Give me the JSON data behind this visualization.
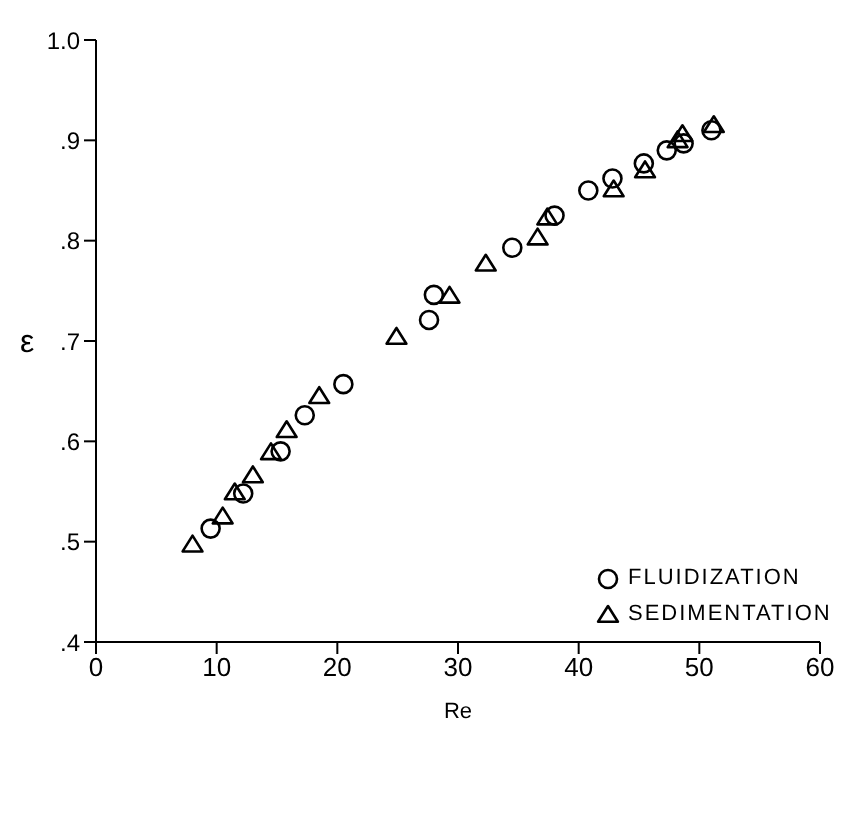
{
  "chart_data": {
    "type": "scatter",
    "xlabel": "Re",
    "ylabel": "ε",
    "xlim": [
      0,
      60
    ],
    "xticks": [
      0,
      10,
      20,
      30,
      40,
      50,
      60
    ],
    "ylim": [
      0.4,
      1.0
    ],
    "yticks": [
      {
        "value": 0.4,
        "label": ".4"
      },
      {
        "value": 0.5,
        "label": ".5"
      },
      {
        "value": 0.6,
        "label": ".6"
      },
      {
        "value": 0.7,
        "label": ".7"
      },
      {
        "value": 0.8,
        "label": ".8"
      },
      {
        "value": 0.9,
        "label": ".9"
      },
      {
        "value": 1.0,
        "label": "1.0"
      }
    ],
    "grid": false,
    "legend": "bottom right",
    "series": [
      {
        "name": "FLUIDIZATION",
        "color": "#000000",
        "marker": "circle",
        "x": [
          9.5,
          12.2,
          15.3,
          17.3,
          20.5,
          27.6,
          28,
          34.5,
          38,
          40.8,
          42.8,
          45.4,
          47.3,
          48.7,
          51
        ],
        "values": [
          0.513,
          0.548,
          0.59,
          0.626,
          0.657,
          0.721,
          0.746,
          0.793,
          0.825,
          0.85,
          0.862,
          0.877,
          0.89,
          0.897,
          0.91
        ]
      },
      {
        "name": "SEDIMENTATION",
        "color": "#000000",
        "marker": "triangle",
        "x": [
          8,
          10.5,
          11.5,
          13,
          14.5,
          15.8,
          18.5,
          24.9,
          29.3,
          32.3,
          36.6,
          37.4,
          42.9,
          45.5,
          48.2,
          48.6,
          51.2
        ],
        "values": [
          0.497,
          0.525,
          0.549,
          0.566,
          0.589,
          0.611,
          0.645,
          0.704,
          0.745,
          0.777,
          0.803,
          0.823,
          0.851,
          0.87,
          0.9,
          0.906,
          0.915
        ]
      }
    ]
  }
}
